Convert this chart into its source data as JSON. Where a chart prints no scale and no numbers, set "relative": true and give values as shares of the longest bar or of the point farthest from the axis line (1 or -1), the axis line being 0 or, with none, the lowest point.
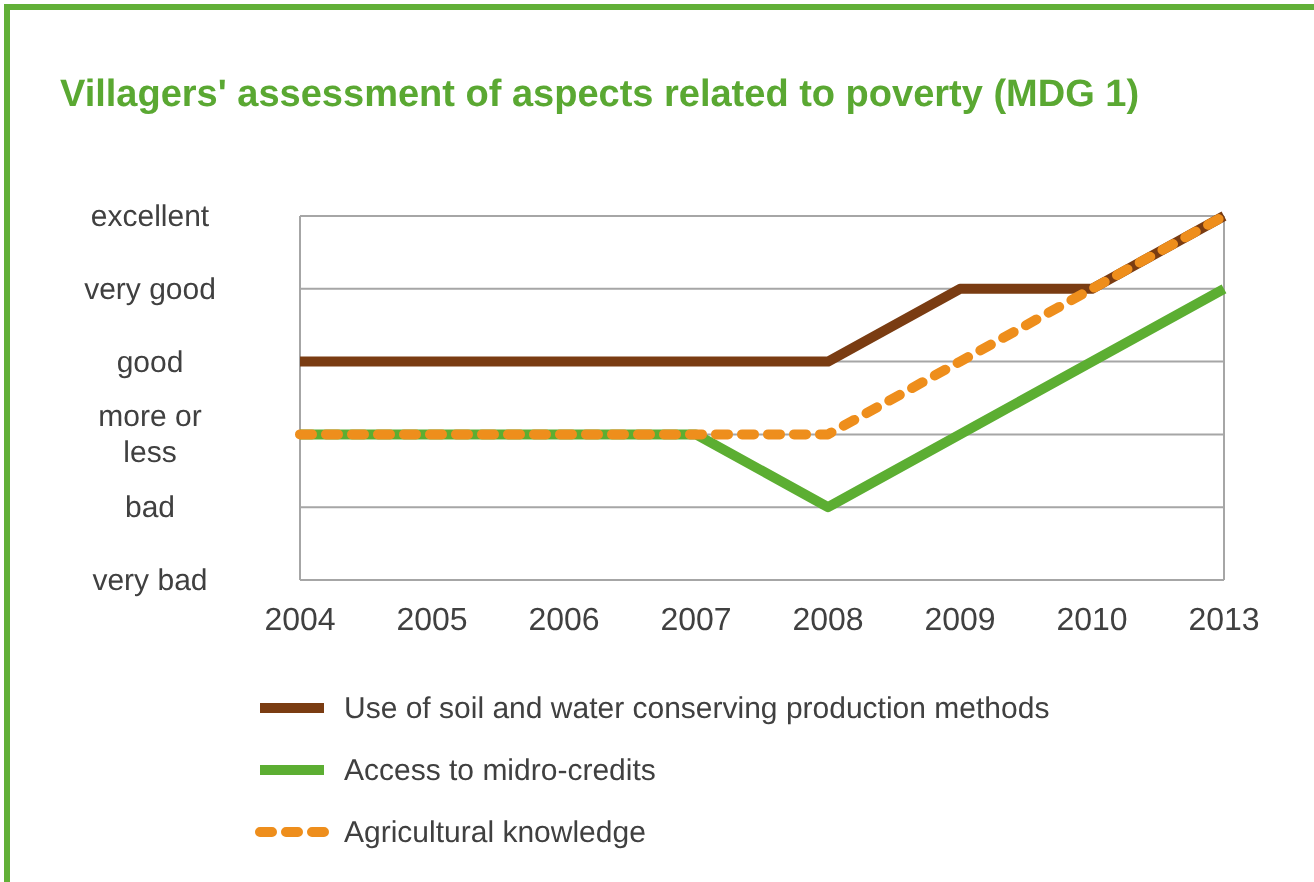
{
  "chart_data": {
    "type": "line",
    "title": "Villagers' assessment of aspects related to poverty (MDG 1)",
    "categories": [
      "2004",
      "2005",
      "2006",
      "2007",
      "2008",
      "2009",
      "2010",
      "2013"
    ],
    "relative": true,
    "y_categories": [
      "excellent",
      "very good",
      "good",
      "more or less",
      "bad",
      "very bad"
    ],
    "grid": "y",
    "legend": "bottom",
    "marker": "none",
    "series": [
      {
        "name": "Use of soil and water conserving production methods",
        "color": "#7a3c12",
        "values": [
          0.6,
          0.6,
          0.6,
          0.6,
          0.6,
          0.8,
          0.8,
          1
        ],
        "line_style": "solid"
      },
      {
        "name": "Access to midro-credits",
        "color": "#5cae32",
        "values": [
          0.4,
          0.4,
          0.4,
          0.4,
          0.2,
          0.4,
          0.6,
          0.8
        ],
        "line_style": "solid"
      },
      {
        "name": "Agricultural knowledge",
        "color": "#ee8e1c",
        "values": [
          0.4,
          0.4,
          0.4,
          0.4,
          0.4,
          0.6,
          0.8,
          1
        ],
        "line_style": "dashed"
      }
    ]
  }
}
